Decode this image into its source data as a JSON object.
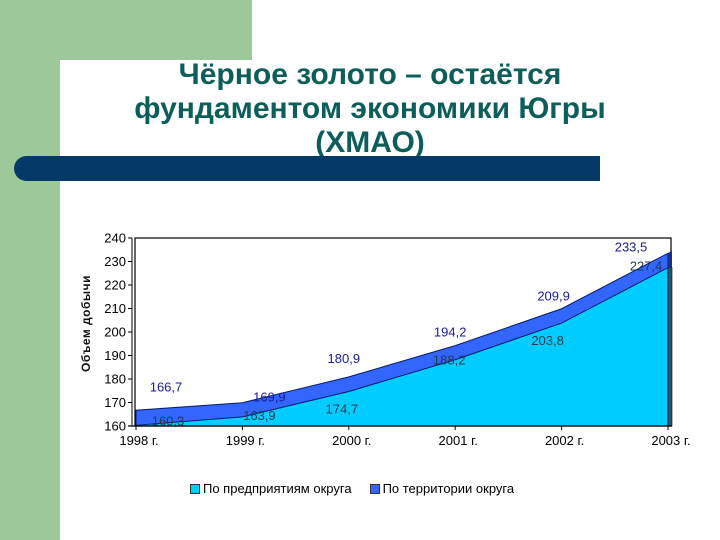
{
  "slide": {
    "title_lines": [
      "Чёрное золото – остаётся",
      "фундаментом экономики Югры",
      "(ХМАО)"
    ]
  },
  "colors": {
    "background_green": "#9dc99a",
    "title_text": "#0d5e5a",
    "navy_bar": "#053a68",
    "series_enterprises": "#00ccff",
    "series_territory": "#3366ff",
    "label_territory": "#1a1a99",
    "label_enterprises": "#1f3b4d"
  },
  "chart_data": {
    "type": "area",
    "title": "",
    "xlabel": "",
    "ylabel": "Объем добычи",
    "categories": [
      "1998 г.",
      "1999 г.",
      "2000 г.",
      "2001 г.",
      "2002 г.",
      "2003 г."
    ],
    "series": [
      {
        "name": "По предприятиям округа",
        "color": "#00ccff",
        "values": [
          160.3,
          163.9,
          174.7,
          188.2,
          203.8,
          227.4
        ]
      },
      {
        "name": "По территории округа",
        "color": "#3366ff",
        "values": [
          166.7,
          169.9,
          180.9,
          194.2,
          209.9,
          233.5
        ]
      }
    ],
    "data_labels": {
      "enterprises": [
        "160,3",
        "163,9",
        "174,7",
        "188,2",
        "203,8",
        "227,4"
      ],
      "territory": [
        "166,7",
        "169,9",
        "180,9",
        "194,2",
        "209,9",
        "233,5"
      ]
    },
    "ylim": [
      160,
      240
    ],
    "yticks": [
      "160",
      "170",
      "180",
      "190",
      "200",
      "210",
      "220",
      "230",
      "240"
    ],
    "grid": false,
    "legend_position": "bottom"
  }
}
